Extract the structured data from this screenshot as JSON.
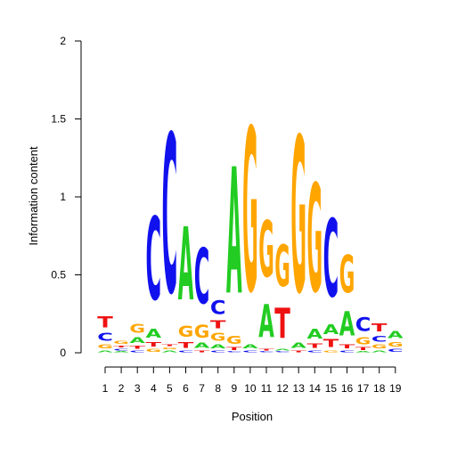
{
  "chart_data": {
    "type": "sequence-logo",
    "xlabel": "Position",
    "ylabel": "Information content",
    "ylim": [
      0,
      2
    ],
    "y_ticks": [
      "0",
      "0.5",
      "1",
      "1.5",
      "2"
    ],
    "positions": [
      "1",
      "2",
      "3",
      "4",
      "5",
      "6",
      "7",
      "8",
      "9",
      "10",
      "11",
      "12",
      "13",
      "14",
      "15",
      "16",
      "17",
      "18",
      "19"
    ],
    "colors": {
      "A": "#22cc22",
      "C": "#1111ee",
      "G": "#ffa500",
      "T": "#ee1111"
    },
    "stacks": [
      [
        [
          "A",
          0.02
        ],
        [
          "G",
          0.04
        ],
        [
          "C",
          0.08
        ],
        [
          "T",
          0.11
        ]
      ],
      [
        [
          "A",
          0.01
        ],
        [
          "C",
          0.02
        ],
        [
          "T",
          0.02
        ],
        [
          "G",
          0.03
        ]
      ],
      [
        [
          "C",
          0.02
        ],
        [
          "T",
          0.03
        ],
        [
          "A",
          0.06
        ],
        [
          "G",
          0.09
        ]
      ],
      [
        [
          "G",
          0.03
        ],
        [
          "T",
          0.05
        ],
        [
          "A",
          0.09
        ],
        [
          "C",
          0.85
        ]
      ],
      [
        [
          "A",
          0.02
        ],
        [
          "G",
          0.02
        ],
        [
          "T",
          0.02
        ],
        [
          "C",
          1.63
        ]
      ],
      [
        [
          "C",
          0.02
        ],
        [
          "T",
          0.06
        ],
        [
          "G",
          0.11
        ],
        [
          "A",
          0.75
        ]
      ],
      [
        [
          "T",
          0.02
        ],
        [
          "A",
          0.05
        ],
        [
          "G",
          0.13
        ],
        [
          "C",
          0.57
        ]
      ],
      [
        [
          "C",
          0.02
        ],
        [
          "A",
          0.04
        ],
        [
          "G",
          0.08
        ],
        [
          "T",
          0.08
        ],
        [
          "C",
          0.14
        ]
      ],
      [
        [
          "C",
          0.01
        ],
        [
          "T",
          0.03
        ],
        [
          "G",
          0.08
        ],
        [
          "A",
          1.3
        ]
      ],
      [
        [
          "C",
          0.02
        ],
        [
          "A",
          0.04
        ],
        [
          "G",
          1.68
        ]
      ],
      [
        [
          "C",
          0.01
        ],
        [
          "T",
          0.02
        ],
        [
          "A",
          0.34
        ],
        [
          "G",
          0.58
        ]
      ],
      [
        [
          "C",
          0.01
        ],
        [
          "A",
          0.02
        ],
        [
          "T",
          0.31
        ],
        [
          "G",
          0.43
        ]
      ],
      [
        [
          "T",
          0.02
        ],
        [
          "A",
          0.05
        ],
        [
          "G",
          1.6
        ]
      ],
      [
        [
          "C",
          0.02
        ],
        [
          "T",
          0.05
        ],
        [
          "A",
          0.1
        ],
        [
          "G",
          1.11
        ]
      ],
      [
        [
          "G",
          0.02
        ],
        [
          "T",
          0.08
        ],
        [
          "A",
          0.1
        ],
        [
          "C",
          0.8
        ]
      ],
      [
        [
          "C",
          0.02
        ],
        [
          "T",
          0.04
        ],
        [
          "A",
          0.25
        ],
        [
          "G",
          0.39
        ]
      ],
      [
        [
          "A",
          0.01
        ],
        [
          "T",
          0.03
        ],
        [
          "G",
          0.07
        ],
        [
          "C",
          0.14
        ]
      ],
      [
        [
          "A",
          0.02
        ],
        [
          "G",
          0.04
        ],
        [
          "C",
          0.06
        ],
        [
          "T",
          0.08
        ]
      ],
      [
        [
          "C",
          0.03
        ],
        [
          "G",
          0.05
        ],
        [
          "A",
          0.07
        ]
      ]
    ]
  }
}
